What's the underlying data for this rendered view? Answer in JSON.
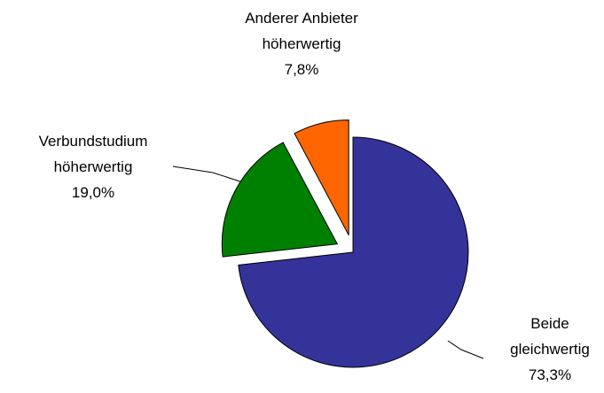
{
  "chart_data": {
    "type": "pie",
    "categories": [
      "Beide gleichwertig",
      "Verbundstudium höherwertig",
      "Anderer Anbieter höherwertig"
    ],
    "values": [
      73.3,
      19.0,
      7.8
    ],
    "value_labels": [
      "73,3%",
      "19,0%",
      "7,8%"
    ],
    "colors": [
      "#333399",
      "#008000",
      "#ff6600"
    ],
    "exploded": [
      false,
      true,
      true
    ]
  }
}
